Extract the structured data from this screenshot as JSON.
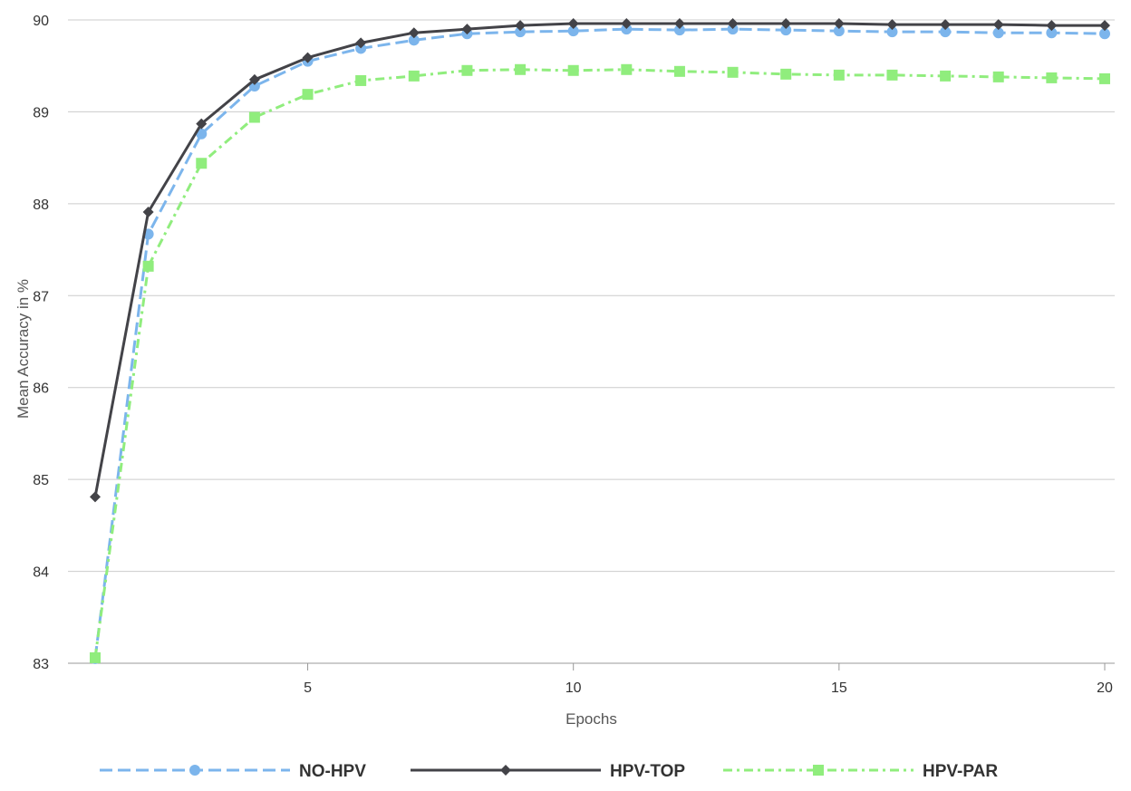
{
  "chart_data": {
    "type": "line",
    "title": "",
    "xlabel": "Epochs",
    "ylabel": "Mean Accuracy in %",
    "xlim": [
      1,
      20
    ],
    "ylim": [
      83,
      90
    ],
    "x_ticks": [
      5,
      10,
      15,
      20
    ],
    "y_ticks": [
      83,
      84,
      85,
      86,
      87,
      88,
      89,
      90
    ],
    "grid": "horizontal",
    "legend_position": "bottom",
    "x": [
      1,
      2,
      3,
      4,
      5,
      6,
      7,
      8,
      9,
      10,
      11,
      12,
      13,
      14,
      15,
      16,
      17,
      18,
      19,
      20
    ],
    "series": [
      {
        "name": "NO-HPV",
        "color": "#7cb5ec",
        "dash": "dashed",
        "marker": "circle",
        "values": [
          83.05,
          87.67,
          88.76,
          89.28,
          89.55,
          89.69,
          89.78,
          89.85,
          89.87,
          89.88,
          89.9,
          89.89,
          89.9,
          89.89,
          89.88,
          89.87,
          89.87,
          89.86,
          89.86,
          89.85
        ]
      },
      {
        "name": "HPV-TOP",
        "color": "#434348",
        "dash": "solid",
        "marker": "diamond",
        "values": [
          84.81,
          87.91,
          88.87,
          89.35,
          89.59,
          89.75,
          89.86,
          89.9,
          89.94,
          89.96,
          89.96,
          89.96,
          89.96,
          89.96,
          89.96,
          89.95,
          89.95,
          89.95,
          89.94,
          89.94
        ]
      },
      {
        "name": "HPV-PAR",
        "color": "#90ed7d",
        "dash": "dashdot",
        "marker": "square",
        "values": [
          83.06,
          87.32,
          88.44,
          88.94,
          89.19,
          89.34,
          89.39,
          89.45,
          89.46,
          89.45,
          89.46,
          89.44,
          89.43,
          89.41,
          89.4,
          89.4,
          89.39,
          89.38,
          89.37,
          89.36
        ]
      }
    ]
  }
}
